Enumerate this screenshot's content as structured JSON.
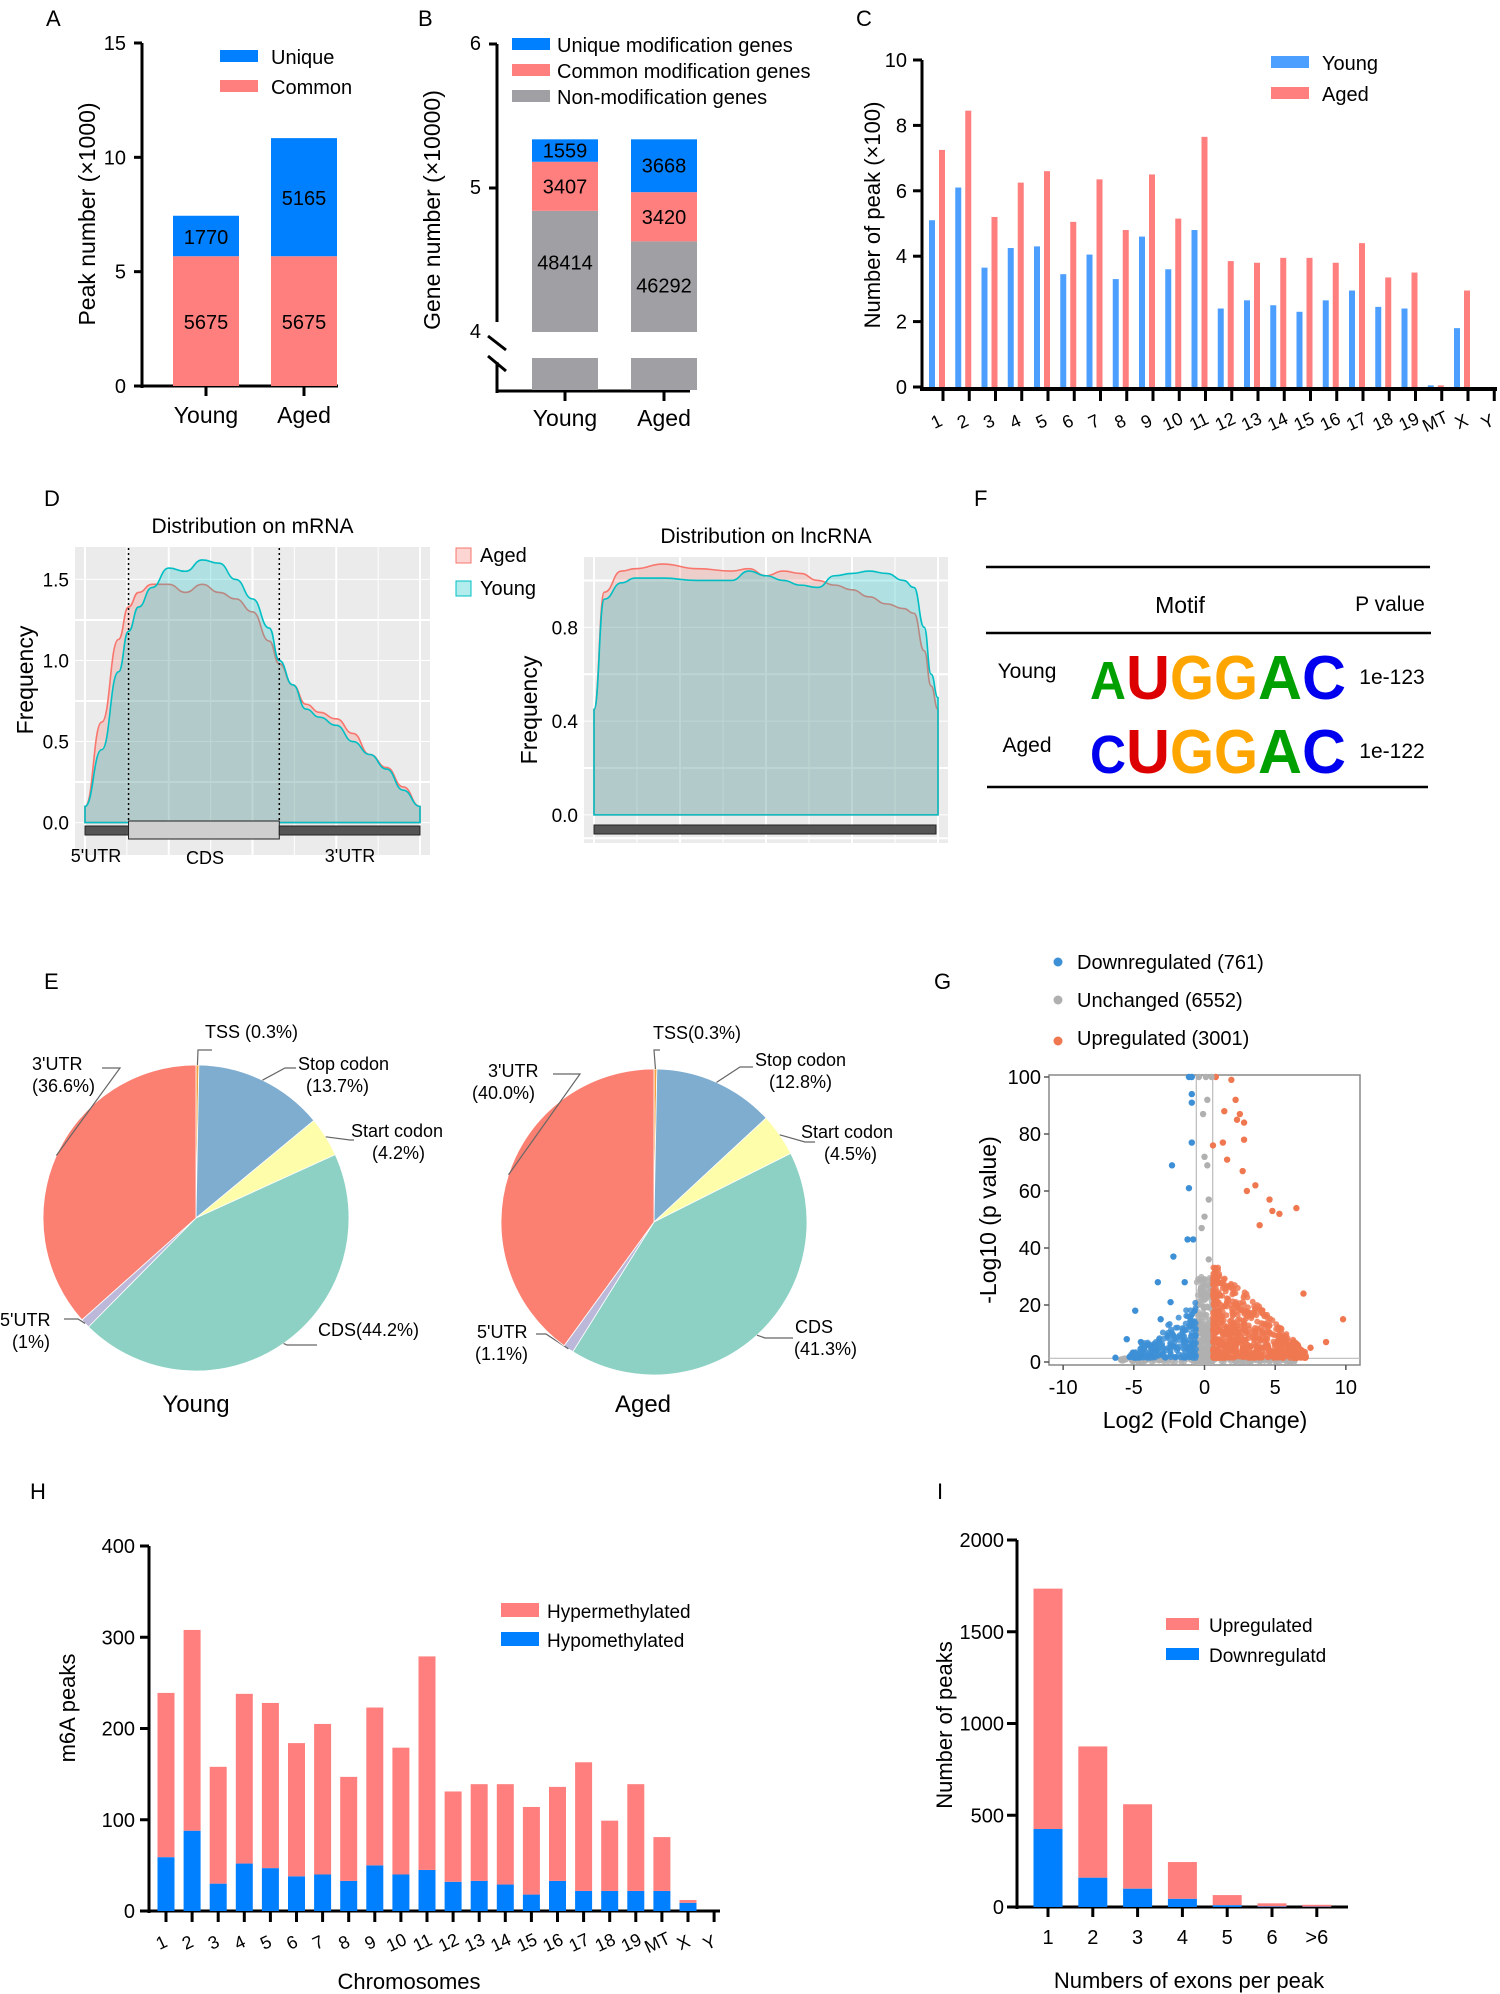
{
  "panels": {
    "A": {
      "label": "A",
      "chart_data": {
        "type": "bar",
        "stacked": true,
        "categories": [
          "Young",
          "Aged"
        ],
        "series": [
          {
            "name": "Common",
            "values": [
              5675,
              5675
            ],
            "labels": [
              "5675",
              "5675"
            ],
            "color": "#ff7f7f"
          },
          {
            "name": "Unique",
            "values": [
              1770,
              5165
            ],
            "labels": [
              "1770",
              "5165"
            ],
            "color": "#0080ff"
          }
        ],
        "legend": [
          "Unique",
          "Common"
        ],
        "ylabel": "Peak number (×1000)",
        "yticks": [
          "0",
          "5",
          "10",
          "15"
        ],
        "ylim": [
          0,
          15000
        ],
        "legend_position": "top-right"
      }
    },
    "B": {
      "label": "B",
      "chart_data": {
        "type": "bar",
        "stacked": true,
        "axis_break": [
          0,
          40000
        ],
        "categories": [
          "Young",
          "Aged"
        ],
        "series": [
          {
            "name": "Non-modification genes",
            "values": [
              48414,
              46292
            ],
            "labels": [
              "48414",
              "46292"
            ],
            "color": "#a0a0a4"
          },
          {
            "name": "Common modification genes",
            "values": [
              3407,
              3420
            ],
            "labels": [
              "3407",
              "3420"
            ],
            "color": "#ff7f7f"
          },
          {
            "name": "Unique modification genes",
            "values": [
              1559,
              3668
            ],
            "labels": [
              "1559",
              "3668"
            ],
            "color": "#0080ff"
          }
        ],
        "legend": [
          "Unique modification genes",
          "Common modification genes",
          "Non-modification genes"
        ],
        "ylabel": "Gene number (×10000)",
        "yticks": [
          "4",
          "5",
          "6"
        ],
        "ylim": [
          40000,
          60000
        ],
        "legend_position": "top"
      }
    },
    "C": {
      "label": "C",
      "chart_data": {
        "type": "bar",
        "grouped": true,
        "categories": [
          "1",
          "2",
          "3",
          "4",
          "5",
          "6",
          "7",
          "8",
          "9",
          "10",
          "11",
          "12",
          "13",
          "14",
          "15",
          "16",
          "17",
          "18",
          "19",
          "MT",
          "X",
          "Y"
        ],
        "series": [
          {
            "name": "Young",
            "values": [
              5.1,
              6.1,
              3.65,
              4.25,
              4.3,
              3.45,
              4.05,
              3.3,
              4.6,
              3.6,
              4.8,
              2.4,
              2.65,
              2.5,
              2.3,
              2.65,
              2.95,
              2.45,
              2.4,
              0.05,
              1.8,
              0
            ],
            "color": "#4d9fff"
          },
          {
            "name": "Aged",
            "values": [
              7.25,
              8.45,
              5.2,
              6.25,
              6.6,
              5.05,
              6.35,
              4.8,
              6.5,
              5.15,
              7.65,
              3.85,
              3.8,
              3.95,
              3.95,
              3.8,
              4.4,
              3.35,
              3.5,
              0.05,
              2.95,
              0
            ],
            "color": "#ff7f7f"
          }
        ],
        "ylabel": "Number of peak (×100)",
        "yticks": [
          "0",
          "2",
          "4",
          "6",
          "8",
          "10"
        ],
        "ylim": [
          0,
          10
        ],
        "legend_position": "top-right"
      }
    },
    "D": {
      "label": "D",
      "charts": [
        {
          "type": "area",
          "title": "Distribution on mRNA",
          "ylabel": "Frequency",
          "yticks": [
            "0.0",
            "0.5",
            "1.0",
            "1.5"
          ],
          "ylim": [
            -0.2,
            1.7
          ],
          "regions": [
            "5'UTR",
            "CDS",
            "3'UTR"
          ],
          "legend": [
            {
              "name": "Aged",
              "color": "#f8766d"
            },
            {
              "name": "Young",
              "color": "#00bfc4"
            }
          ],
          "x": [
            0,
            0.05,
            0.1,
            0.13,
            0.16,
            0.2,
            0.25,
            0.3,
            0.35,
            0.4,
            0.45,
            0.5,
            0.55,
            0.58,
            0.62,
            0.66,
            0.7,
            0.75,
            0.8,
            0.85,
            0.9,
            0.95,
            1.0
          ],
          "series": [
            {
              "name": "Aged",
              "values": [
                0.1,
                0.62,
                1.13,
                1.33,
                1.42,
                1.47,
                1.47,
                1.42,
                1.47,
                1.42,
                1.38,
                1.3,
                1.12,
                0.98,
                0.85,
                0.73,
                0.68,
                0.64,
                0.55,
                0.42,
                0.34,
                0.22,
                0.1
              ]
            },
            {
              "name": "Young",
              "values": [
                0.1,
                0.45,
                0.93,
                1.18,
                1.33,
                1.45,
                1.57,
                1.55,
                1.62,
                1.6,
                1.5,
                1.38,
                1.2,
                1.0,
                0.85,
                0.7,
                0.65,
                0.6,
                0.5,
                0.42,
                0.33,
                0.2,
                0.1
              ]
            }
          ],
          "cds_bounds": [
            0.13,
            0.58
          ]
        },
        {
          "type": "area",
          "title": "Distribution on lncRNA",
          "ylabel": "Frequency",
          "yticks": [
            "0.0",
            "0.4",
            "0.8"
          ],
          "ylim": [
            -0.12,
            1.1
          ],
          "x": [
            0,
            0.03,
            0.08,
            0.12,
            0.2,
            0.3,
            0.4,
            0.45,
            0.5,
            0.55,
            0.6,
            0.65,
            0.7,
            0.75,
            0.8,
            0.85,
            0.9,
            0.93,
            0.96,
            0.98,
            1.0
          ],
          "series": [
            {
              "name": "Aged",
              "values": [
                0.45,
                0.95,
                1.04,
                1.05,
                1.07,
                1.05,
                1.04,
                1.05,
                1.02,
                1.04,
                1.03,
                1.0,
                0.98,
                0.96,
                0.93,
                0.9,
                0.88,
                0.86,
                0.7,
                0.55,
                0.45
              ]
            },
            {
              "name": "Young",
              "values": [
                0.45,
                0.92,
                0.99,
                1.01,
                1.01,
                1.0,
                1.0,
                1.04,
                1.02,
                1.0,
                0.98,
                0.97,
                1.02,
                1.03,
                1.04,
                1.03,
                1.0,
                0.97,
                0.8,
                0.6,
                0.5
              ]
            }
          ]
        }
      ]
    },
    "F": {
      "label": "F",
      "headers": {
        "motif": "Motif",
        "pvalue": "P value"
      },
      "rows": [
        {
          "group": "Young",
          "motif": "AUGGAC",
          "pvalue": "1e-123"
        },
        {
          "group": "Aged",
          "motif": "CUGGAC",
          "pvalue": "1e-122"
        }
      ],
      "base_colors": {
        "A": "#00a000",
        "U": "#dd0000",
        "G": "#ffa500",
        "C": "#0000ee"
      }
    },
    "E": {
      "label": "E",
      "chart_data": [
        {
          "type": "pie",
          "title": "Young",
          "slices": [
            {
              "name": "TSS",
              "value": 0.3,
              "label": "TSS (0.3%)",
              "color": "#f5a040"
            },
            {
              "name": "Stop codon",
              "value": 13.7,
              "label1": "Stop codon",
              "label2": "(13.7%)",
              "color": "#7fadd0"
            },
            {
              "name": "Start codon",
              "value": 4.2,
              "label1": "Start codon",
              "label2": "(4.2%)",
              "color": "#fdfdaa"
            },
            {
              "name": "CDS",
              "value": 44.2,
              "label1": "CDS(44.2%)",
              "label2": "",
              "color": "#8dd1c5"
            },
            {
              "name": "5'UTR",
              "value": 1.0,
              "label1": "5'UTR",
              "label2": "(1%)",
              "color": "#bcb8d9"
            },
            {
              "name": "3'UTR",
              "value": 36.6,
              "label1": "3'UTR",
              "label2": "(36.6%)",
              "color": "#fb8072"
            }
          ]
        },
        {
          "type": "pie",
          "title": "Aged",
          "slices": [
            {
              "name": "TSS",
              "value": 0.3,
              "label": "TSS(0.3%)",
              "color": "#f5a040"
            },
            {
              "name": "Stop codon",
              "value": 12.8,
              "label1": "Stop codon",
              "label2": "(12.8%)",
              "color": "#7fadd0"
            },
            {
              "name": "Start codon",
              "value": 4.5,
              "label1": "Start codon",
              "label2": "(4.5%)",
              "color": "#fdfdaa"
            },
            {
              "name": "CDS",
              "value": 41.3,
              "label1": "CDS",
              "label2": "(41.3%)",
              "color": "#8dd1c5"
            },
            {
              "name": "5'UTR",
              "value": 1.1,
              "label1": "5'UTR",
              "label2": "(1.1%)",
              "color": "#bcb8d9"
            },
            {
              "name": "3'UTR",
              "value": 40.0,
              "label1": "3'UTR",
              "label2": "(40.0%)",
              "color": "#fb8072"
            }
          ]
        }
      ]
    },
    "G": {
      "label": "G",
      "chart_data": {
        "type": "scatter",
        "xlabel": "Log2 (Fold Change)",
        "ylabel": "-Log10 (p value)",
        "xticks": [
          "-10",
          "-5",
          "0",
          "5",
          "10"
        ],
        "yticks": [
          "0",
          "20",
          "40",
          "60",
          "80",
          "100"
        ],
        "xlim": [
          -11,
          11
        ],
        "ylim": [
          0,
          100
        ],
        "thresholds": {
          "x": [
            -0.58,
            0.58
          ],
          "y": 1.3
        },
        "legend": [
          {
            "name": "Downregulated (761)",
            "color": "#3d8fd6"
          },
          {
            "name": "Unchanged (6552)",
            "color": "#b0b0b0"
          },
          {
            "name": "Upregulated (3001)",
            "color": "#f07850"
          }
        ],
        "counts": {
          "down": 761,
          "unchanged": 6552,
          "up": 3001
        },
        "highlight_points": {
          "down": [
            [
              -6.3,
              1.5
            ],
            [
              -5.3,
              1.8
            ],
            [
              -4.9,
              18
            ],
            [
              -2.3,
              69
            ],
            [
              -2.2,
              37
            ],
            [
              -1.1,
              61
            ],
            [
              -0.9,
              77
            ],
            [
              -0.9,
              94
            ],
            [
              -0.9,
              91
            ],
            [
              -1.4,
              28
            ],
            [
              -3.3,
              28
            ],
            [
              -1.2,
              43
            ],
            [
              -0.8,
              43
            ],
            [
              -1.1,
              100
            ],
            [
              -0.9,
              100
            ],
            [
              -2.4,
              21
            ],
            [
              -3.1,
              15
            ],
            [
              -5.5,
              8
            ],
            [
              -4.5,
              7
            ]
          ],
          "up": [
            [
              1.4,
              88
            ],
            [
              1.9,
              99
            ],
            [
              2.2,
              92
            ],
            [
              2.5,
              87
            ],
            [
              2.3,
              85
            ],
            [
              2.8,
              84
            ],
            [
              1.3,
              77
            ],
            [
              2.8,
              78
            ],
            [
              1.6,
              71
            ],
            [
              2.7,
              67
            ],
            [
              3.6,
              62
            ],
            [
              4.6,
              57
            ],
            [
              4.8,
              53
            ],
            [
              5.3,
              52
            ],
            [
              6.5,
              54
            ],
            [
              7.0,
              24
            ],
            [
              9.8,
              15
            ],
            [
              8.6,
              7
            ],
            [
              7.5,
              5
            ],
            [
              0.8,
              100
            ],
            [
              0.6,
              76
            ],
            [
              3.0,
              60
            ],
            [
              3.9,
              48
            ]
          ]
        }
      }
    },
    "H": {
      "label": "H",
      "chart_data": {
        "type": "bar",
        "stacked": true,
        "categories": [
          "1",
          "2",
          "3",
          "4",
          "5",
          "6",
          "7",
          "8",
          "9",
          "10",
          "11",
          "12",
          "13",
          "14",
          "15",
          "16",
          "17",
          "18",
          "19",
          "MT",
          "X",
          "Y"
        ],
        "series": [
          {
            "name": "Hypomethylated",
            "values": [
              59,
              88,
              30,
              52,
              47,
              38,
              40,
              33,
              50,
              40,
              45,
              32,
              33,
              29,
              18,
              33,
              22,
              22,
              22,
              22,
              9,
              0
            ],
            "color": "#0080ff"
          },
          {
            "name": "Hypermethylated",
            "values": [
              180,
              220,
              128,
              186,
              181,
              146,
              165,
              114,
              173,
              139,
              234,
              99,
              106,
              110,
              96,
              103,
              141,
              77,
              117,
              59,
              3,
              0
            ],
            "color": "#ff7f7f"
          }
        ],
        "totals": [
          239,
          308,
          158,
          238,
          228,
          184,
          205,
          147,
          223,
          179,
          279,
          131,
          139,
          139,
          114,
          136,
          163,
          99,
          139,
          81,
          12,
          0
        ],
        "legend": [
          "Hypermethylated",
          "Hypomethylated"
        ],
        "xlabel": "Chromosomes",
        "ylabel": "m6A peaks",
        "yticks": [
          "0",
          "100",
          "200",
          "300",
          "400"
        ],
        "ylim": [
          0,
          400
        ],
        "legend_position": "top-right"
      }
    },
    "I": {
      "label": "I",
      "chart_data": {
        "type": "bar",
        "stacked": true,
        "categories": [
          "1",
          "2",
          "3",
          "4",
          "5",
          "6",
          ">6"
        ],
        "series": [
          {
            "name": "Downregulatd",
            "values": [
              425,
              160,
              100,
              45,
              10,
              3,
              2
            ],
            "color": "#0080ff"
          },
          {
            "name": "Upregulated",
            "values": [
              1310,
              715,
              460,
              200,
              55,
              17,
              10
            ],
            "color": "#ff7f7f"
          }
        ],
        "totals": [
          1735,
          875,
          560,
          245,
          65,
          20,
          12
        ],
        "legend": [
          "Upregulated",
          "Downregulatd"
        ],
        "xlabel": "Numbers of exons per peak",
        "ylabel": "Number of peaks",
        "yticks": [
          "0",
          "500",
          "1000",
          "1500",
          "2000"
        ],
        "ylim": [
          0,
          2000
        ],
        "legend_position": "top-right"
      }
    }
  }
}
